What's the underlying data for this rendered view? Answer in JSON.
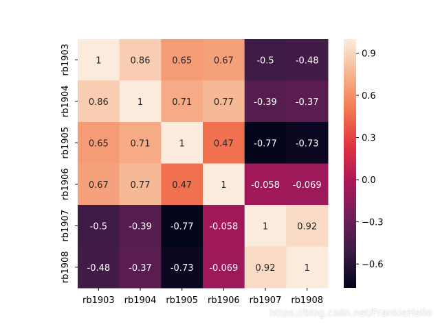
{
  "chart_data": {
    "type": "heatmap",
    "title": "",
    "xlabel": "",
    "ylabel": "",
    "categories": [
      "rb1903",
      "rb1904",
      "rb1905",
      "rb1906",
      "rb1907",
      "rb1908"
    ],
    "values": [
      [
        1,
        0.86,
        0.65,
        0.67,
        -0.5,
        -0.48
      ],
      [
        0.86,
        1,
        0.71,
        0.77,
        -0.39,
        -0.37
      ],
      [
        0.65,
        0.71,
        1,
        0.47,
        -0.77,
        -0.73
      ],
      [
        0.67,
        0.77,
        0.47,
        1,
        -0.058,
        -0.069
      ],
      [
        -0.5,
        -0.39,
        -0.77,
        -0.058,
        1,
        0.92
      ],
      [
        -0.48,
        -0.37,
        -0.73,
        -0.069,
        0.92,
        1
      ]
    ],
    "annotations": [
      [
        "1",
        "0.86",
        "0.65",
        "0.67",
        "-0.5",
        "-0.48"
      ],
      [
        "0.86",
        "1",
        "0.71",
        "0.77",
        "-0.39",
        "-0.37"
      ],
      [
        "0.65",
        "0.71",
        "1",
        "0.47",
        "-0.77",
        "-0.73"
      ],
      [
        "0.67",
        "0.77",
        "0.47",
        "1",
        "-0.058",
        "-0.069"
      ],
      [
        "-0.5",
        "-0.39",
        "-0.77",
        "-0.058",
        "1",
        "0.92"
      ],
      [
        "-0.48",
        "-0.37",
        "-0.73",
        "-0.069",
        "0.92",
        "1"
      ]
    ],
    "colorbar": {
      "range": [
        -0.77,
        1
      ],
      "ticks": [
        0.9,
        0.6,
        0.3,
        0.0,
        -0.3,
        -0.6
      ],
      "tick_labels": [
        "0.9",
        "0.6",
        "0.3",
        "0.0",
        "−0.3",
        "−0.6"
      ]
    },
    "colormap": [
      "#03051a",
      "#3a1b44",
      "#701f57",
      "#ac1759",
      "#e13342",
      "#f37651",
      "#f6b48f",
      "#faebdd"
    ]
  },
  "watermark": "https://blog.csdn.net/FrankieHello"
}
